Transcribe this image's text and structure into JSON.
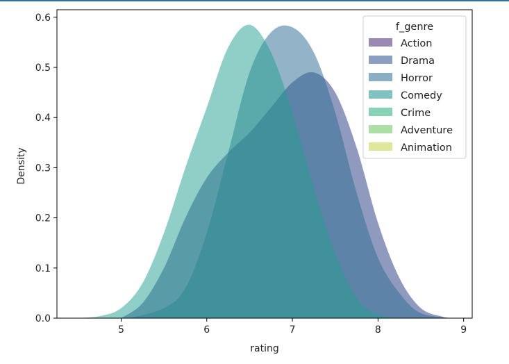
{
  "chart_data": {
    "type": "area",
    "xlabel": "rating",
    "ylabel": "Density",
    "xlim": [
      4.25,
      9.1
    ],
    "ylim": [
      0,
      0.615
    ],
    "xticks": [
      5,
      6,
      7,
      8,
      9
    ],
    "yticks": [
      0.0,
      0.1,
      0.2,
      0.3,
      0.4,
      0.5,
      0.6
    ],
    "grid": false,
    "legend": {
      "title": "f_genre",
      "placement": "top-right",
      "entries": [
        {
          "name": "Action",
          "color": "#9a8ab3"
        },
        {
          "name": "Drama",
          "color": "#8c9fc0"
        },
        {
          "name": "Horror",
          "color": "#8aaec3"
        },
        {
          "name": "Comedy",
          "color": "#80c2bf"
        },
        {
          "name": "Crime",
          "color": "#88d3b6"
        },
        {
          "name": "Adventure",
          "color": "#addea5"
        },
        {
          "name": "Animation",
          "color": "#dfe89a"
        }
      ]
    },
    "series": [
      {
        "name": "Drama",
        "color": "#3f4f8f",
        "opacity": 0.58,
        "x": [
          5.0,
          5.25,
          5.5,
          5.75,
          6.0,
          6.25,
          6.5,
          6.75,
          7.0,
          7.25,
          7.5,
          7.75,
          8.0,
          8.25,
          8.5,
          8.75,
          8.87
        ],
        "y": [
          0.0,
          0.03,
          0.1,
          0.2,
          0.28,
          0.33,
          0.37,
          0.42,
          0.47,
          0.49,
          0.45,
          0.34,
          0.19,
          0.08,
          0.02,
          0.003,
          0.0
        ]
      },
      {
        "name": "Horror",
        "color": "#2f6f96",
        "opacity": 0.52,
        "x": [
          5.1,
          5.5,
          5.75,
          6.0,
          6.25,
          6.5,
          6.75,
          7.0,
          7.25,
          7.5,
          7.75,
          8.0,
          8.25,
          8.5,
          8.87
        ],
        "y": [
          0.0,
          0.02,
          0.06,
          0.17,
          0.33,
          0.49,
          0.57,
          0.58,
          0.53,
          0.41,
          0.25,
          0.12,
          0.05,
          0.01,
          0.0
        ]
      },
      {
        "name": "Comedy",
        "color": "#22a090",
        "opacity": 0.5,
        "x": [
          4.45,
          4.75,
          5.0,
          5.25,
          5.5,
          5.75,
          6.0,
          6.25,
          6.5,
          6.75,
          7.0,
          7.25,
          7.5,
          7.75,
          8.0,
          8.25
        ],
        "y": [
          0.0,
          0.004,
          0.02,
          0.07,
          0.17,
          0.3,
          0.42,
          0.54,
          0.585,
          0.53,
          0.41,
          0.26,
          0.13,
          0.04,
          0.008,
          0.0
        ]
      }
    ]
  }
}
